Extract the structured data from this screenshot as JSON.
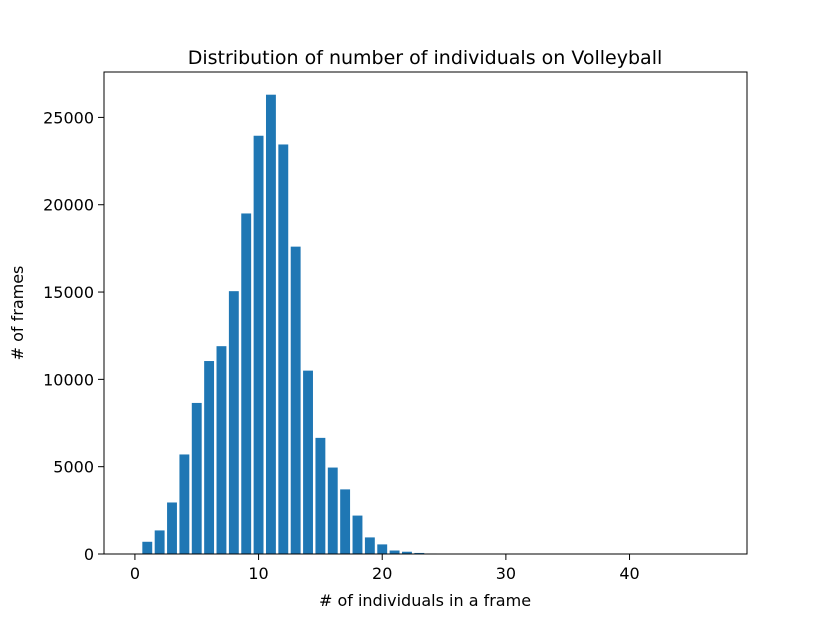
{
  "chart_data": {
    "type": "bar",
    "title": "Distribution of number of individuals on Volleyball",
    "xlabel": "# of individuals in a frame",
    "ylabel": "# of frames",
    "xlim": [
      -2.5,
      49.5
    ],
    "ylim": [
      0,
      27600
    ],
    "xticks": [
      0,
      10,
      20,
      30,
      40
    ],
    "yticks": [
      0,
      5000,
      10000,
      15000,
      20000,
      25000
    ],
    "bar_color": "#1f77b4",
    "grid": false,
    "x": [
      1,
      2,
      3,
      4,
      5,
      6,
      7,
      8,
      9,
      10,
      11,
      12,
      13,
      14,
      15,
      16,
      17,
      18,
      19,
      20,
      21,
      22,
      23,
      24,
      25,
      26,
      27,
      28,
      29,
      30,
      31,
      32,
      33,
      34,
      35,
      36,
      37,
      38,
      39,
      40,
      41,
      42,
      43,
      44,
      45,
      46,
      47
    ],
    "values": [
      700,
      1350,
      2950,
      5700,
      8650,
      11050,
      11900,
      15050,
      19500,
      23950,
      26300,
      23450,
      17600,
      10500,
      6650,
      4950,
      3700,
      2200,
      950,
      550,
      200,
      130,
      60,
      30,
      20,
      15,
      10,
      10,
      8,
      8,
      6,
      6,
      5,
      5,
      4,
      4,
      3,
      3,
      3,
      2,
      2,
      2,
      2,
      2,
      1,
      1,
      1
    ]
  }
}
